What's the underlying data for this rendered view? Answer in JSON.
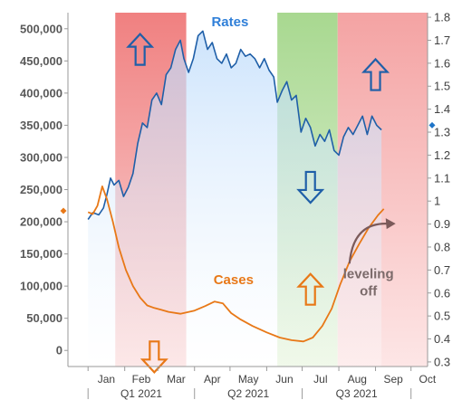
{
  "chart_data": {
    "type": "line",
    "title": "",
    "y_left": {
      "ticks": [
        0,
        50000,
        100000,
        150000,
        200000,
        250000,
        300000,
        350000,
        400000,
        450000,
        500000
      ],
      "tick_labels": [
        "0",
        "50,000",
        "100,000",
        "150,000",
        "200,000",
        "250,000",
        "300,000",
        "350,000",
        "400,000",
        "450,000",
        "500,000"
      ],
      "ylim": [
        -25000,
        525000
      ]
    },
    "y_right": {
      "ticks": [
        0.3,
        0.4,
        0.5,
        0.6,
        0.7,
        0.8,
        0.9,
        1,
        1.1,
        1.2,
        1.3,
        1.4,
        1.5,
        1.6,
        1.7,
        1.8
      ],
      "tick_labels": [
        "0.3",
        "0.4",
        "0.5",
        "0.6",
        "0.7",
        "0.8",
        "0.9",
        "1",
        "1.1",
        "1.2",
        "1.3",
        "1.4",
        "1.5",
        "1.6",
        "1.7",
        "1.8"
      ],
      "ylim": [
        0.28,
        1.82
      ]
    },
    "x_months": [
      "Jan",
      "Feb",
      "Mar",
      "Apr",
      "May",
      "Jun",
      "Jul",
      "Aug",
      "Sep",
      "Oct"
    ],
    "x_groups": [
      "Q1 2021",
      "Q2 2021",
      "Q3 2021"
    ],
    "bands": [
      {
        "start": "2021-01-24",
        "end": "2021-03-25",
        "color": "#f08080",
        "phase": "up"
      },
      {
        "start": "2021-03-25",
        "end": "2021-06-10",
        "color": "#ffffff",
        "phase": "neutral"
      },
      {
        "start": "2021-06-10",
        "end": "2021-07-31",
        "color": "#a8d890",
        "phase": "down"
      },
      {
        "start": "2021-07-31",
        "end": "2021-10-15",
        "color": "#f4a3a3",
        "phase": "up"
      }
    ],
    "series": [
      {
        "name": "Rates",
        "axis": "right",
        "color": "#1f5fa8",
        "points": [
          [
            "2021-01-01",
            0.92
          ],
          [
            "2021-01-05",
            0.95
          ],
          [
            "2021-01-10",
            0.94
          ],
          [
            "2021-01-14",
            0.97
          ],
          [
            "2021-01-17",
            1.03
          ],
          [
            "2021-01-20",
            1.1
          ],
          [
            "2021-01-23",
            1.07
          ],
          [
            "2021-01-27",
            1.09
          ],
          [
            "2021-01-31",
            1.02
          ],
          [
            "2021-02-04",
            1.06
          ],
          [
            "2021-02-08",
            1.12
          ],
          [
            "2021-02-12",
            1.25
          ],
          [
            "2021-02-16",
            1.34
          ],
          [
            "2021-02-20",
            1.32
          ],
          [
            "2021-02-24",
            1.44
          ],
          [
            "2021-02-28",
            1.47
          ],
          [
            "2021-03-04",
            1.42
          ],
          [
            "2021-03-08",
            1.55
          ],
          [
            "2021-03-12",
            1.58
          ],
          [
            "2021-03-16",
            1.66
          ],
          [
            "2021-03-20",
            1.7
          ],
          [
            "2021-03-23",
            1.62
          ],
          [
            "2021-03-27",
            1.56
          ],
          [
            "2021-03-31",
            1.62
          ],
          [
            "2021-04-04",
            1.72
          ],
          [
            "2021-04-08",
            1.74
          ],
          [
            "2021-04-12",
            1.66
          ],
          [
            "2021-04-16",
            1.69
          ],
          [
            "2021-04-20",
            1.62
          ],
          [
            "2021-04-24",
            1.6
          ],
          [
            "2021-04-28",
            1.64
          ],
          [
            "2021-05-02",
            1.58
          ],
          [
            "2021-05-06",
            1.6
          ],
          [
            "2021-05-10",
            1.66
          ],
          [
            "2021-05-14",
            1.63
          ],
          [
            "2021-05-18",
            1.64
          ],
          [
            "2021-05-22",
            1.62
          ],
          [
            "2021-05-26",
            1.58
          ],
          [
            "2021-05-30",
            1.62
          ],
          [
            "2021-06-03",
            1.57
          ],
          [
            "2021-06-07",
            1.54
          ],
          [
            "2021-06-10",
            1.43
          ],
          [
            "2021-06-14",
            1.48
          ],
          [
            "2021-06-18",
            1.52
          ],
          [
            "2021-06-22",
            1.44
          ],
          [
            "2021-06-26",
            1.46
          ],
          [
            "2021-06-30",
            1.3
          ],
          [
            "2021-07-04",
            1.36
          ],
          [
            "2021-07-08",
            1.32
          ],
          [
            "2021-07-12",
            1.24
          ],
          [
            "2021-07-16",
            1.29
          ],
          [
            "2021-07-20",
            1.26
          ],
          [
            "2021-07-24",
            1.31
          ],
          [
            "2021-07-28",
            1.22
          ],
          [
            "2021-08-01",
            1.2
          ],
          [
            "2021-08-05",
            1.28
          ],
          [
            "2021-08-09",
            1.32
          ],
          [
            "2021-08-13",
            1.29
          ],
          [
            "2021-08-17",
            1.33
          ],
          [
            "2021-08-21",
            1.37
          ],
          [
            "2021-08-25",
            1.29
          ],
          [
            "2021-08-29",
            1.37
          ],
          [
            "2021-09-02",
            1.33
          ],
          [
            "2021-09-06",
            1.31
          ]
        ]
      },
      {
        "name": "Cases",
        "axis": "left",
        "color": "#e87817",
        "points": [
          [
            "2021-01-01",
            215000
          ],
          [
            "2021-01-05",
            212000
          ],
          [
            "2021-01-09",
            225000
          ],
          [
            "2021-01-13",
            255000
          ],
          [
            "2021-01-17",
            235000
          ],
          [
            "2021-01-22",
            200000
          ],
          [
            "2021-01-27",
            160000
          ],
          [
            "2021-02-02",
            125000
          ],
          [
            "2021-02-08",
            100000
          ],
          [
            "2021-02-14",
            82000
          ],
          [
            "2021-02-20",
            70000
          ],
          [
            "2021-02-26",
            66000
          ],
          [
            "2021-03-04",
            63000
          ],
          [
            "2021-03-10",
            60000
          ],
          [
            "2021-03-20",
            57000
          ],
          [
            "2021-04-01",
            62000
          ],
          [
            "2021-04-10",
            69000
          ],
          [
            "2021-04-18",
            76000
          ],
          [
            "2021-04-25",
            73000
          ],
          [
            "2021-05-02",
            58000
          ],
          [
            "2021-05-10",
            48000
          ],
          [
            "2021-05-20",
            38000
          ],
          [
            "2021-06-01",
            28000
          ],
          [
            "2021-06-12",
            20000
          ],
          [
            "2021-06-22",
            16000
          ],
          [
            "2021-07-02",
            14000
          ],
          [
            "2021-07-10",
            20000
          ],
          [
            "2021-07-18",
            38000
          ],
          [
            "2021-07-26",
            65000
          ],
          [
            "2021-08-02",
            102000
          ],
          [
            "2021-08-10",
            138000
          ],
          [
            "2021-08-18",
            165000
          ],
          [
            "2021-08-26",
            190000
          ],
          [
            "2021-09-03",
            210000
          ],
          [
            "2021-09-08",
            220000
          ]
        ]
      }
    ],
    "markers": [
      {
        "axis": "right",
        "value": 1.33,
        "color": "#1f75c8"
      },
      {
        "axis": "left",
        "value": 217000,
        "color": "#e87817"
      }
    ],
    "annotations": [
      {
        "text": "Rates",
        "color": "#2f7fd8"
      },
      {
        "text": "Cases",
        "color": "#e87817"
      },
      {
        "text": "leveling off",
        "lines": [
          "leveling",
          "off"
        ],
        "color": "#7b6a6a"
      }
    ],
    "arrows": [
      {
        "direction": "up",
        "color": "#1f5fa8",
        "series": "Rates",
        "date": "2021-02-14",
        "value": 1.66
      },
      {
        "direction": "down",
        "color": "#e87817",
        "series": "Cases",
        "date": "2021-02-26",
        "value": -10000
      },
      {
        "direction": "down",
        "color": "#1f5fa8",
        "series": "Rates",
        "date": "2021-07-08",
        "value": 1.06
      },
      {
        "direction": "up",
        "color": "#e87817",
        "series": "Cases",
        "date": "2021-07-08",
        "value": 95000
      },
      {
        "direction": "up",
        "color": "#1f5fa8",
        "series": "Rates",
        "date": "2021-09-01",
        "value": 1.55
      }
    ]
  }
}
